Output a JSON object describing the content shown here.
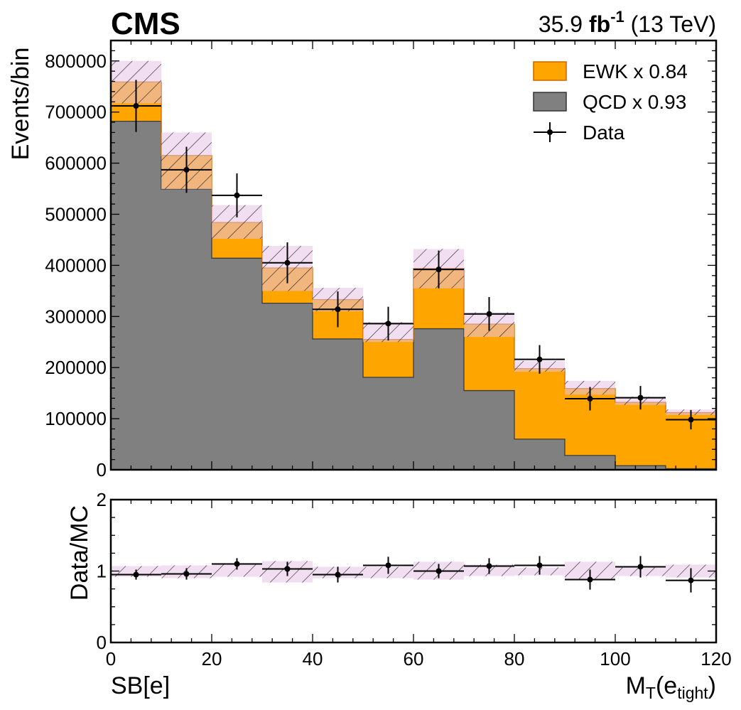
{
  "header": {
    "experiment": "CMS",
    "lumi_value": "35.9",
    "lumi_unit": "fb",
    "lumi_exp": "-1",
    "energy": "(13 TeV)"
  },
  "labels": {
    "region": "SB[e]",
    "x_main": "M",
    "x_sub": "T",
    "x_open": "(e",
    "x_sub2": "tight",
    "x_close": ")"
  },
  "chart_data": [
    {
      "type": "bar",
      "stacked": true,
      "ylabel": "Events/bin",
      "xlim": [
        0,
        120
      ],
      "ylim": [
        0,
        840000
      ],
      "bin_edges": [
        0,
        10,
        20,
        30,
        40,
        50,
        60,
        70,
        80,
        90,
        100,
        110,
        120
      ],
      "x_ticks": [
        "0",
        "20",
        "40",
        "60",
        "80",
        "100",
        "120"
      ],
      "y_ticks": [
        "0",
        "100000",
        "200000",
        "300000",
        "400000",
        "500000",
        "600000",
        "700000",
        "800000"
      ],
      "series": [
        {
          "name": "QCD x 0.93",
          "color": "#808080",
          "values": [
            682000,
            549000,
            414000,
            326000,
            256000,
            181000,
            276000,
            155000,
            60000,
            28000,
            8000,
            2000
          ]
        },
        {
          "name": "EWK x 0.84",
          "color": "#ffa500",
          "values": [
            77000,
            66000,
            70000,
            69000,
            77000,
            74000,
            118000,
            130000,
            138000,
            131000,
            124000,
            110000
          ]
        }
      ],
      "mc_uncertainty": {
        "name": "MC uncertainty",
        "color": "#e5c3e5",
        "lower": [
          717000,
          549000,
          452000,
          350000,
          310000,
          250000,
          355000,
          260000,
          192000,
          147000,
          127000,
          107000
        ],
        "upper": [
          800000,
          660000,
          518000,
          438000,
          356000,
          289000,
          432000,
          308000,
          213000,
          174000,
          143000,
          118000
        ]
      },
      "data": {
        "name": "Data",
        "values": [
          712000,
          587000,
          537000,
          405000,
          314000,
          286000,
          392000,
          305000,
          216000,
          139000,
          141000,
          98000
        ],
        "errors": [
          51000,
          45000,
          43000,
          40000,
          35000,
          33000,
          37000,
          33000,
          28000,
          23000,
          23000,
          19000
        ]
      },
      "legend": {
        "position": "top-right",
        "entries": [
          "EWK x 0.84",
          "QCD x 0.93",
          "Data"
        ]
      }
    },
    {
      "type": "scatter",
      "ylabel": "Data/MC",
      "xlim": [
        0,
        120
      ],
      "ylim": [
        0,
        2
      ],
      "y_ticks": [
        "0",
        "1",
        "2"
      ],
      "bin_edges": [
        0,
        10,
        20,
        30,
        40,
        50,
        60,
        70,
        80,
        90,
        100,
        110,
        120
      ],
      "ratio": [
        0.95,
        0.96,
        1.1,
        1.03,
        0.95,
        1.08,
        1.0,
        1.07,
        1.08,
        0.88,
        1.06,
        0.87
      ],
      "ratio_errors": [
        0.07,
        0.08,
        0.08,
        0.1,
        0.11,
        0.12,
        0.1,
        0.11,
        0.13,
        0.14,
        0.15,
        0.17
      ],
      "band_lower": [
        0.92,
        0.9,
        0.92,
        0.84,
        0.9,
        0.9,
        0.88,
        0.93,
        0.94,
        0.87,
        0.93,
        0.91
      ],
      "band_upper": [
        1.07,
        1.08,
        1.11,
        1.14,
        1.06,
        1.06,
        1.13,
        1.09,
        1.05,
        1.13,
        1.07,
        1.09
      ]
    }
  ]
}
